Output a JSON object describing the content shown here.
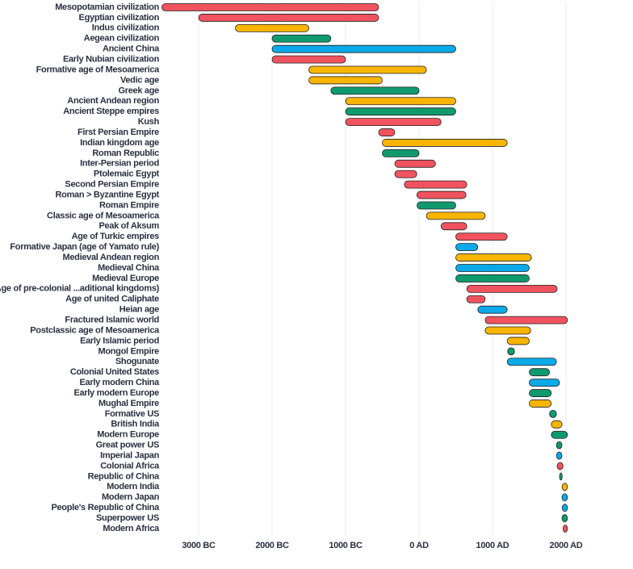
{
  "chart_data": {
    "type": "timeline",
    "categories": [
      "Mesopotamian civilization",
      "Egyptian civilization",
      "Indus civilization",
      "Aegean civilization",
      "Ancient China",
      "Early Nubian civilization",
      "Formative age of Mesoamerica",
      "Vedic age",
      "Greek age",
      "Ancient Andean region",
      "Ancient Steppe empires",
      "Kush",
      "First Persian Empire",
      "Indian kingdom age",
      "Roman Republic",
      "Inter-Persian period",
      "Ptolemaic Egypt",
      "Second Persian Empire",
      "Roman > Byzantine Egypt",
      "Roman Empire",
      "Classic age of Mesoamerica",
      "Peak of Aksum",
      "Age of Turkic empires",
      "Formative Japan (age of Yamato rule)",
      "Medieval Andean region",
      "Medieval China",
      "Medieval Europe",
      "Age of pre-colonial ...aditional kingdoms)",
      "Age of united Caliphate",
      "Heian age",
      "Fractured Islamic world",
      "Postclassic age of Mesoamerica",
      "Early Islamic period",
      "Mongol Empire",
      "Shogunate",
      "Colonial United States",
      "Early modern China",
      "Early modern Europe",
      "Mughal Empire",
      "Formative US",
      "British India",
      "Modern Europe",
      "Great power US",
      "Imperial Japan",
      "Colonial Africa",
      "Republic of China",
      "Modern India",
      "Modern Japan",
      "People's Republic of China",
      "Superpower US",
      "Modern Africa"
    ],
    "starts": [
      -3500,
      -3000,
      -2500,
      -2000,
      -2000,
      -2000,
      -1500,
      -1500,
      -1200,
      -1000,
      -1000,
      -1000,
      -550,
      -500,
      -500,
      -330,
      -330,
      -200,
      -30,
      -27,
      100,
      300,
      500,
      500,
      500,
      500,
      500,
      650,
      650,
      800,
      900,
      900,
      1200,
      1206,
      1200,
      1500,
      1500,
      1500,
      1500,
      1776,
      1800,
      1800,
      1870,
      1870,
      1880,
      1912,
      1947,
      1945,
      1949,
      1945,
      1960
    ],
    "ends": [
      -550,
      -550,
      -1500,
      -1200,
      500,
      -1000,
      100,
      -500,
      0,
      500,
      500,
      300,
      -330,
      1200,
      0,
      224,
      -30,
      650,
      640,
      500,
      900,
      650,
      1200,
      800,
      1530,
      1500,
      1500,
      1880,
      900,
      1200,
      2020,
      1520,
      1500,
      1300,
      1870,
      1776,
      1912,
      1800,
      1800,
      1870,
      1947,
      2020,
      1945,
      1945,
      1960,
      1949,
      2020,
      2020,
      2020,
      2020,
      2020
    ],
    "colors": [
      "#f0535f",
      "#f0535f",
      "#f7b500",
      "#0f9a6e",
      "#0aa9e8",
      "#f0535f",
      "#f7b500",
      "#f7b500",
      "#0f9a6e",
      "#f7b500",
      "#0f9a6e",
      "#f0535f",
      "#f0535f",
      "#f7b500",
      "#0f9a6e",
      "#f0535f",
      "#f0535f",
      "#f0535f",
      "#f0535f",
      "#0f9a6e",
      "#f7b500",
      "#f0535f",
      "#f0535f",
      "#0aa9e8",
      "#f7b500",
      "#0aa9e8",
      "#0f9a6e",
      "#f0535f",
      "#f0535f",
      "#0aa9e8",
      "#f0535f",
      "#f7b500",
      "#f7b500",
      "#0f9a6e",
      "#0aa9e8",
      "#0f9a6e",
      "#0aa9e8",
      "#0f9a6e",
      "#f7b500",
      "#0f9a6e",
      "#f7b500",
      "#0f9a6e",
      "#0f9a6e",
      "#0aa9e8",
      "#f0535f",
      "#0f9a6e",
      "#f7b500",
      "#0aa9e8",
      "#0aa9e8",
      "#0f9a6e",
      "#f0535f"
    ],
    "xlim": [
      -3500,
      2500
    ],
    "xticks": [
      {
        "value": -3000,
        "label": "3000 BC"
      },
      {
        "value": -2000,
        "label": "2000 BC"
      },
      {
        "value": -1000,
        "label": "1000 BC"
      },
      {
        "value": 0,
        "label": "0 AD"
      },
      {
        "value": 1000,
        "label": "1000 AD"
      },
      {
        "value": 2000,
        "label": "2000 AD"
      }
    ],
    "grid": true
  }
}
